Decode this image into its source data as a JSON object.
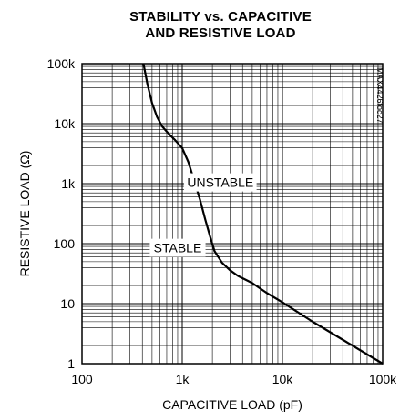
{
  "chart_data": {
    "type": "line",
    "title_line1": "STABILITY vs. CAPACITIVE",
    "title_line2": "AND RESISTIVE LOAD",
    "xlabel": "CAPACITIVE LOAD (pF)",
    "ylabel": "RESISTIVE LOAD (Ω)",
    "x_scale": "log",
    "y_scale": "log",
    "xlim": [
      100,
      100000
    ],
    "ylim": [
      1,
      100000
    ],
    "x_ticks": [
      {
        "value": 100,
        "label": "100"
      },
      {
        "value": 1000,
        "label": "1k"
      },
      {
        "value": 10000,
        "label": "10k"
      },
      {
        "value": 100000,
        "label": "100k"
      }
    ],
    "y_ticks": [
      {
        "value": 1,
        "label": "1"
      },
      {
        "value": 10,
        "label": "10"
      },
      {
        "value": 100,
        "label": "100"
      },
      {
        "value": 1000,
        "label": "1k"
      },
      {
        "value": 10000,
        "label": "10k"
      },
      {
        "value": 100000,
        "label": "100k"
      }
    ],
    "grid": true,
    "series": [
      {
        "x": [
          410,
          450,
          500,
          560,
          630,
          720,
          850,
          1000,
          1150,
          1300,
          1500,
          1700,
          1900,
          2100,
          2500,
          3000,
          3600,
          4300,
          5000,
          7000,
          10000,
          20000,
          50000,
          100000
        ],
        "y": [
          100000,
          45000,
          22000,
          13000,
          9000,
          7000,
          5300,
          3900,
          2300,
          1200,
          550,
          250,
          130,
          75,
          48,
          36,
          29,
          25,
          22,
          15,
          10.5,
          5,
          2,
          1
        ],
        "color": "#000000"
      }
    ],
    "annotations": [
      {
        "text": "UNSTABLE",
        "x": 2400,
        "y": 1050
      },
      {
        "text": "STABLE",
        "x": 900,
        "y": 85
      }
    ],
    "watermark": "MAX4426toc27"
  }
}
